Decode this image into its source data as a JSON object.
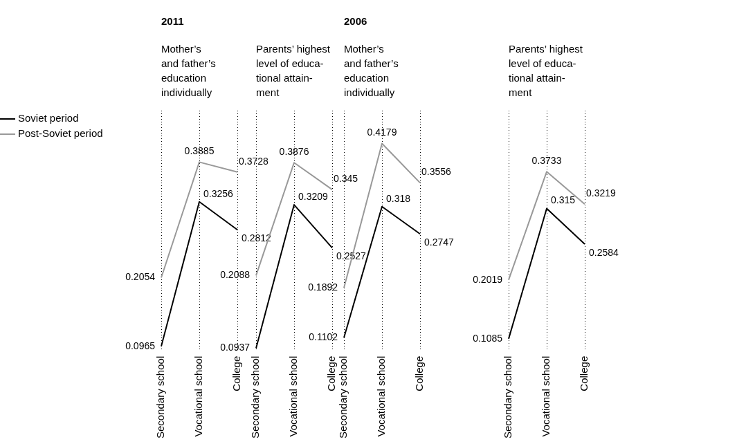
{
  "chart_data": [
    {
      "type": "line",
      "title": "2011",
      "subtitle": "Mother’s\nand father’s\neducation\nindividually",
      "categories": [
        "Secondary school",
        "Vocational school",
        "College"
      ],
      "series": [
        {
          "name": "Soviet period",
          "color": "#000000",
          "values": [
            0.0965,
            0.3256,
            0.2812
          ]
        },
        {
          "name": "Post-Soviet period",
          "color": "#999999",
          "values": [
            0.2054,
            0.3885,
            0.3728
          ]
        }
      ],
      "ylim": [
        0.09,
        0.47
      ],
      "grid": "x",
      "legend": "left",
      "tick_labels": "x",
      "data_labels": true
    },
    {
      "type": "line",
      "subtitle": "Parents’ highest\nlevel of educa-\ntional attain-\nment",
      "categories": [
        "Secondary school",
        "Vocational school",
        "College"
      ],
      "series": [
        {
          "color": "#000000",
          "values": [
            0.0937,
            0.3209,
            0.2527
          ]
        },
        {
          "color": "#999999",
          "values": [
            0.2088,
            0.3876,
            0.345
          ]
        }
      ],
      "ylim": [
        0.09,
        0.47
      ],
      "grid": "x",
      "tick_labels": "x",
      "data_labels": true
    },
    {
      "type": "line",
      "title": "2006",
      "subtitle": "Mother’s\nand father’s\neducation\nindividually",
      "categories": [
        "Secondary school",
        "Vocational school",
        "College"
      ],
      "series": [
        {
          "color": "#000000",
          "values": [
            0.1102,
            0.318,
            0.2747
          ]
        },
        {
          "color": "#999999",
          "values": [
            0.1892,
            0.4179,
            0.3556
          ]
        }
      ],
      "ylim": [
        0.09,
        0.47
      ],
      "grid": "x",
      "tick_labels": "x",
      "data_labels": true
    },
    {
      "type": "line",
      "subtitle": "Parents’ highest\nlevel of educa-\ntional attain-\nment",
      "categories": [
        "Secondary school",
        "Vocational school",
        "College"
      ],
      "series": [
        {
          "color": "#000000",
          "values": [
            0.1085,
            0.315,
            0.2584
          ]
        },
        {
          "color": "#999999",
          "values": [
            0.2019,
            0.3733,
            0.3219
          ]
        }
      ],
      "ylim": [
        0.09,
        0.47
      ],
      "grid": "x",
      "tick_labels": "x",
      "data_labels": true
    }
  ]
}
